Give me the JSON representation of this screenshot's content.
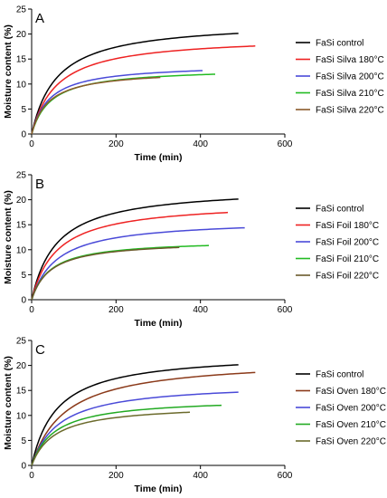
{
  "chart_data": [
    {
      "type": "line",
      "panel_label": "A",
      "xlabel": "Time (min)",
      "ylabel": "Moisture content (%)",
      "xlim": [
        0,
        600
      ],
      "ylim": [
        0,
        25
      ],
      "xticks": [
        0,
        200,
        400,
        600
      ],
      "yticks": [
        0,
        5,
        10,
        15,
        20,
        25
      ],
      "grid": false,
      "legend_position": "right",
      "series": [
        {
          "name": "FaSi control",
          "color": "#000000",
          "plateau": 22.6,
          "k": 60,
          "x_end": 490
        },
        {
          "name": "FaSi Silva 180°C",
          "color": "#ee2222",
          "plateau": 19.6,
          "k": 60,
          "x_end": 530
        },
        {
          "name": "FaSi Silva 200°C",
          "color": "#4a4ad8",
          "plateau": 14.0,
          "k": 42,
          "x_end": 405
        },
        {
          "name": "FaSi Silva 210°C",
          "color": "#22bb22",
          "plateau": 13.2,
          "k": 45,
          "x_end": 435
        },
        {
          "name": "FaSi Silva 220°C",
          "color": "#8b5a2b",
          "plateau": 12.8,
          "k": 40,
          "x_end": 305
        }
      ]
    },
    {
      "type": "line",
      "panel_label": "B",
      "xlabel": "Time (min)",
      "ylabel": "Moisture content (%)",
      "xlim": [
        0,
        600
      ],
      "ylim": [
        0,
        25
      ],
      "xticks": [
        0,
        200,
        400,
        600
      ],
      "yticks": [
        0,
        5,
        10,
        15,
        20,
        25
      ],
      "grid": false,
      "legend_position": "right",
      "series": [
        {
          "name": "FaSi control",
          "color": "#000000",
          "plateau": 22.6,
          "k": 60,
          "x_end": 490
        },
        {
          "name": "FaSi Foil 180°C",
          "color": "#ee2222",
          "plateau": 19.7,
          "k": 60,
          "x_end": 465
        },
        {
          "name": "FaSi Foil 200°C",
          "color": "#4a4ad8",
          "plateau": 16.1,
          "k": 60,
          "x_end": 505
        },
        {
          "name": "FaSi Foil 210°C",
          "color": "#22bb22",
          "plateau": 12.0,
          "k": 45,
          "x_end": 420
        },
        {
          "name": "FaSi Foil 220°C",
          "color": "#6b5a2b",
          "plateau": 11.8,
          "k": 45,
          "x_end": 350
        }
      ]
    },
    {
      "type": "line",
      "panel_label": "C",
      "xlabel": "Time (min)",
      "ylabel": "Moisture content (%)",
      "xlim": [
        0,
        600
      ],
      "ylim": [
        0,
        25
      ],
      "xticks": [
        0,
        200,
        400,
        600
      ],
      "yticks": [
        0,
        5,
        10,
        15,
        20,
        25
      ],
      "grid": false,
      "legend_position": "right",
      "series": [
        {
          "name": "FaSi control",
          "color": "#000000",
          "plateau": 22.6,
          "k": 60,
          "x_end": 490
        },
        {
          "name": "FaSi Oven 180°C",
          "color": "#8b3a1a",
          "plateau": 21.4,
          "k": 80,
          "x_end": 530
        },
        {
          "name": "FaSi Oven 200°C",
          "color": "#4a4ad8",
          "plateau": 16.6,
          "k": 65,
          "x_end": 490
        },
        {
          "name": "FaSi Oven 210°C",
          "color": "#22aa22",
          "plateau": 13.5,
          "k": 55,
          "x_end": 450
        },
        {
          "name": "FaSi Oven 220°C",
          "color": "#6b6a2b",
          "plateau": 12.2,
          "k": 55,
          "x_end": 375
        }
      ]
    }
  ]
}
